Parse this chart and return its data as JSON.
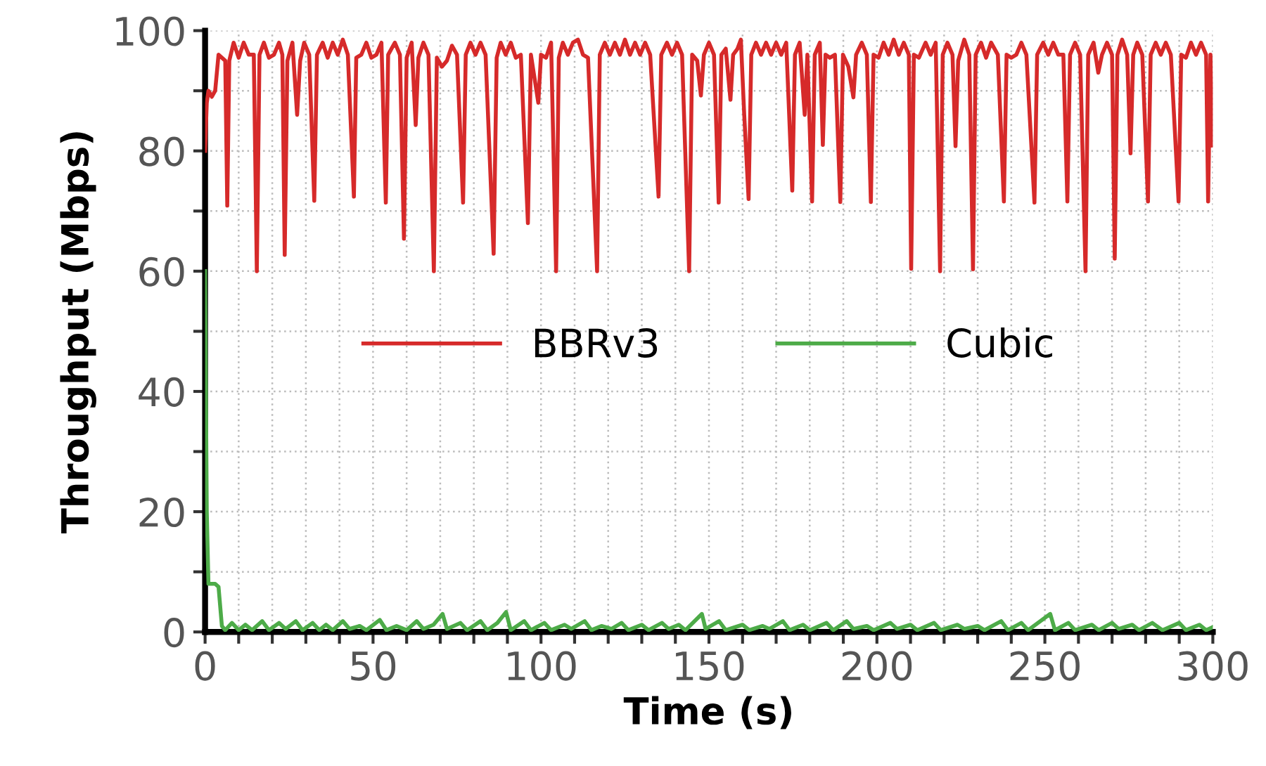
{
  "chart_data": {
    "type": "line",
    "xlabel": "Time (s)",
    "ylabel": "Throughput (Mbps)",
    "xlim": [
      0,
      300
    ],
    "ylim": [
      0,
      100
    ],
    "xticks": [
      0,
      {
        "value": 10,
        "label": null
      },
      {
        "value": 20,
        "label": null
      },
      {
        "value": 30,
        "label": null
      },
      {
        "value": 40,
        "label": null
      },
      50,
      {
        "value": 60,
        "label": null
      },
      {
        "value": 70,
        "label": null
      },
      {
        "value": 80,
        "label": null
      },
      {
        "value": 90,
        "label": null
      },
      100,
      {
        "value": 110,
        "label": null
      },
      {
        "value": 120,
        "label": null
      },
      {
        "value": 130,
        "label": null
      },
      {
        "value": 140,
        "label": null
      },
      150,
      {
        "value": 160,
        "label": null
      },
      {
        "value": 170,
        "label": null
      },
      {
        "value": 180,
        "label": null
      },
      {
        "value": 190,
        "label": null
      },
      200,
      {
        "value": 210,
        "label": null
      },
      {
        "value": 220,
        "label": null
      },
      {
        "value": 230,
        "label": null
      },
      {
        "value": 240,
        "label": null
      },
      250,
      {
        "value": 260,
        "label": null
      },
      {
        "value": 270,
        "label": null
      },
      {
        "value": 280,
        "label": null
      },
      {
        "value": 290,
        "label": null
      },
      300
    ],
    "yticks": [
      0,
      {
        "value": 10,
        "label": null
      },
      20,
      {
        "value": 30,
        "label": null
      },
      40,
      {
        "value": 50,
        "label": null
      },
      60,
      {
        "value": 70,
        "label": null
      },
      80,
      {
        "value": 90,
        "label": null
      },
      100
    ],
    "grid": true,
    "legend": "center",
    "line_style": "solid",
    "marker": "none",
    "series": [
      {
        "name": "BBRv3",
        "color": "#d62a2a",
        "x": [
          0,
          0.5,
          1,
          2,
          3,
          4,
          5,
          6,
          6.6,
          7.2,
          8.5,
          10,
          11.5,
          13,
          14.5,
          15.4,
          16.2,
          17.5,
          19,
          20.5,
          22,
          23,
          23.7,
          24.5,
          26,
          27.4,
          28.3,
          29.5,
          31,
          32.5,
          33.3,
          35,
          36.5,
          38,
          39.5,
          41,
          42.5,
          44.3,
          45,
          46.5,
          48,
          49.5,
          51,
          52.5,
          53.8,
          54.5,
          56.5,
          58,
          59.2,
          60,
          61.5,
          62.7,
          63.5,
          65,
          66.5,
          68.1,
          69,
          70.5,
          72,
          73.5,
          75,
          76.8,
          77.6,
          79,
          80.5,
          82,
          83.5,
          85.9,
          86.8,
          88,
          89.5,
          91,
          92.5,
          94,
          96.1,
          97,
          99.2,
          100,
          101.5,
          103,
          104.5,
          105.3,
          106.5,
          108,
          109.5,
          111,
          112.5,
          114,
          116.7,
          117.5,
          119,
          120.5,
          122,
          123.5,
          125,
          126.5,
          128,
          129.5,
          131,
          132.5,
          135,
          135.8,
          137.5,
          139,
          140.5,
          142,
          144.1,
          145,
          146.5,
          147.6,
          148.5,
          150,
          151.5,
          152.9,
          153.7,
          155,
          156.4,
          157.2,
          158.5,
          159.5,
          160.5,
          161.8,
          162.6,
          164,
          165.5,
          167,
          168.5,
          170,
          171.5,
          173,
          174.8,
          175.6,
          177,
          178.5,
          179.3,
          180.7,
          181.5,
          183,
          183.9,
          184.7,
          186,
          187.5,
          189.1,
          189.9,
          191.5,
          193,
          193.8,
          195.5,
          197,
          198.2,
          199,
          200.5,
          202,
          203.5,
          205,
          206.5,
          208,
          209.5,
          210.2,
          211,
          212.5,
          214.5,
          216,
          217.5,
          218.8,
          219.6,
          221,
          222.5,
          223.4,
          224.2,
          226,
          227.5,
          228.6,
          229.4,
          231,
          232.5,
          234,
          236,
          237.8,
          238.6,
          240,
          241.5,
          243,
          244.5,
          246.9,
          247.7,
          249.5,
          251,
          252.5,
          254,
          255.5,
          256.7,
          257.5,
          259,
          260.5,
          262.1,
          262.9,
          264.5,
          265.9,
          267,
          268.5,
          270,
          270.8,
          271.6,
          273,
          274.5,
          275.5,
          276.3,
          277.5,
          279,
          280.7,
          281.5,
          283,
          284.5,
          286,
          287.5,
          289.8,
          290.6,
          292,
          293.5,
          295,
          296.5,
          298,
          298.6,
          299.3,
          300
        ],
        "values": [
          80,
          88,
          90,
          89,
          90,
          96,
          95.5,
          95,
          70.9,
          95,
          98,
          95.5,
          98,
          96,
          96,
          60,
          96,
          98,
          95.5,
          96,
          98,
          96,
          62.7,
          95,
          98,
          86,
          95,
          98,
          96,
          71.7,
          96,
          98,
          95.5,
          98,
          96,
          98.5,
          96,
          72.4,
          95.5,
          96,
          98,
          95.5,
          96,
          98,
          71.4,
          96,
          98,
          96,
          65.4,
          95.5,
          98,
          84.3,
          95.5,
          98,
          96,
          60,
          95.5,
          94,
          95,
          97.5,
          96,
          71.4,
          96,
          98,
          96,
          98,
          96,
          62.9,
          95.5,
          98,
          96,
          98,
          95.5,
          96,
          68,
          96,
          88,
          96,
          95.5,
          98,
          60,
          95.5,
          98,
          96,
          98,
          98.5,
          96,
          95.5,
          60,
          96,
          98,
          96,
          98,
          96,
          98.5,
          96,
          98,
          96,
          98,
          96,
          72.4,
          96,
          98,
          96,
          98,
          96,
          60,
          96,
          95,
          89.2,
          96,
          98,
          96,
          71.4,
          96,
          97,
          88.5,
          96,
          97,
          98.5,
          86,
          72,
          96,
          98,
          96,
          98,
          96,
          98,
          96,
          98,
          73.4,
          96,
          98,
          86,
          96,
          71.6,
          96,
          98,
          81,
          96,
          95.5,
          96,
          71.5,
          96,
          94,
          88.9,
          96,
          98,
          96,
          71.5,
          96,
          95.5,
          98,
          96,
          98.5,
          96,
          98,
          96,
          60.4,
          96,
          95.5,
          98,
          96,
          98,
          60,
          96,
          98,
          96,
          80.8,
          95,
          98.5,
          96,
          60.3,
          96,
          98,
          95.5,
          98,
          96,
          71.6,
          96,
          95.5,
          96,
          98,
          96,
          71.4,
          96,
          98,
          96,
          98,
          96,
          96,
          71.6,
          96,
          98,
          96,
          60,
          96,
          98,
          93,
          96,
          98,
          96,
          62.1,
          96,
          98.5,
          96,
          79.6,
          96,
          98,
          96,
          71.6,
          96,
          98,
          96,
          98,
          96,
          71.6,
          96,
          95.5,
          98,
          96,
          98,
          96,
          71.6,
          96,
          80.9
        ]
      },
      {
        "name": "Cubic",
        "color": "#4dab48",
        "x": [
          0,
          0.5,
          1,
          3,
          4,
          5,
          6,
          8,
          10,
          12,
          14,
          17,
          19,
          22,
          24,
          27,
          29,
          32,
          34,
          36,
          38,
          41,
          43,
          46,
          48,
          52,
          54,
          57,
          60,
          63,
          65,
          68,
          70.7,
          72,
          76,
          78,
          82,
          84,
          87,
          89.6,
          91,
          95,
          97,
          101,
          103,
          107,
          109,
          113,
          115,
          118,
          121,
          124,
          126,
          130,
          132,
          136,
          138,
          141,
          143,
          147.9,
          149,
          153,
          155,
          160,
          162,
          166,
          168,
          172,
          174,
          178,
          180,
          185,
          187,
          191,
          193,
          197,
          199,
          204,
          206,
          210,
          212,
          217,
          219,
          224,
          226,
          230,
          232,
          237,
          239,
          243,
          245,
          251.6,
          253,
          257,
          259,
          264,
          266,
          270,
          272,
          276,
          278,
          282,
          285,
          290,
          292,
          296,
          298,
          300
        ],
        "values": [
          60,
          20,
          8,
          8,
          7.5,
          1,
          0.3,
          1.5,
          0.3,
          1.2,
          0.3,
          1.8,
          0.3,
          1.5,
          0.5,
          1.8,
          0.3,
          1.5,
          0.3,
          1.2,
          0.3,
          1.8,
          0.5,
          1,
          0.3,
          2,
          0.3,
          1,
          0.3,
          1.8,
          0.5,
          1.2,
          3,
          0.5,
          1.5,
          0.3,
          1.8,
          0.3,
          1.5,
          3.3,
          0.3,
          1.8,
          0.3,
          1.5,
          0.3,
          1.2,
          0.5,
          1.8,
          0.3,
          1,
          0.5,
          1.5,
          0.3,
          1.2,
          0.3,
          1.5,
          0.5,
          1.2,
          0.3,
          3,
          0.5,
          1.8,
          0.3,
          1.2,
          0.3,
          1,
          0.5,
          1.8,
          0.3,
          1.2,
          0.3,
          1.5,
          0.3,
          1.8,
          0.5,
          1,
          0.3,
          1.5,
          0.5,
          1.2,
          0.3,
          1.5,
          0.3,
          1.2,
          0.5,
          1,
          0.3,
          1.8,
          0.3,
          1.5,
          0.3,
          3,
          0.3,
          1.5,
          0.3,
          1.2,
          0.3,
          1.5,
          0.5,
          1.2,
          0.3,
          1.5,
          0.3,
          1.5,
          0.3,
          1.2,
          0.3,
          0.8
        ]
      }
    ]
  }
}
